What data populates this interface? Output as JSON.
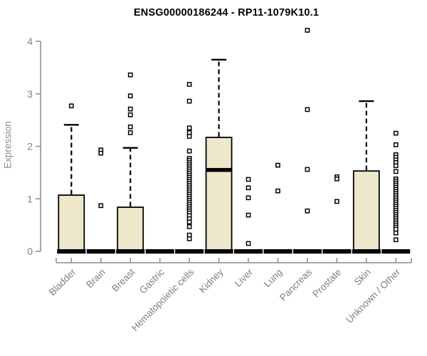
{
  "title": "ENSG00000186244 - RP11-1079K10.1",
  "chart_data": {
    "type": "boxplot",
    "title": "ENSG00000186244 - RP11-1079K10.1",
    "xlabel": "",
    "ylabel": "Expression",
    "ylim": [
      0,
      4.35
    ],
    "yticks": [
      0,
      1,
      2,
      3,
      4
    ],
    "grid": false,
    "legend": "none",
    "colors": {
      "box_fill": "#ede7cb",
      "box_stroke": "#000000",
      "median": "#000000",
      "axis": "#8a8a8a",
      "tick_label": "#7f7f7f",
      "title": "#000000",
      "background": "#ffffff"
    },
    "categories": [
      "Bladder",
      "Brain",
      "Breast",
      "Gastric",
      "Hematopoietic cells",
      "Kidney",
      "Liver",
      "Lung",
      "Pancreas",
      "Prostate",
      "Skin",
      "Unknown / Other"
    ],
    "boxes": [
      {
        "label": "Bladder",
        "q1": 0,
        "median": 0,
        "q3": 1.07,
        "whisker_low": 0,
        "whisker_high": 2.41,
        "outliers": [
          2.77
        ]
      },
      {
        "label": "Brain",
        "q1": 0,
        "median": 0,
        "q3": 0,
        "whisker_low": 0,
        "whisker_high": 0,
        "outliers": [
          1.93,
          1.87,
          0.87
        ]
      },
      {
        "label": "Breast",
        "q1": 0,
        "median": 0,
        "q3": 0.84,
        "whisker_low": 0,
        "whisker_high": 1.97,
        "outliers": [
          3.36,
          2.96,
          2.71,
          2.6,
          2.37,
          2.26
        ]
      },
      {
        "label": "Gastric",
        "q1": 0,
        "median": 0,
        "q3": 0,
        "whisker_low": 0,
        "whisker_high": 0,
        "outliers": []
      },
      {
        "label": "Hematopoietic cells",
        "q1": 0,
        "median": 0,
        "q3": 0,
        "whisker_low": 0,
        "whisker_high": 0,
        "outliers": [
          3.18,
          2.86,
          2.35,
          2.26,
          2.19,
          1.91,
          1.77,
          1.73,
          1.69,
          1.65,
          1.61,
          1.57,
          1.53,
          1.49,
          1.45,
          1.41,
          1.37,
          1.33,
          1.29,
          1.25,
          1.21,
          1.17,
          1.13,
          1.09,
          1.05,
          1.01,
          0.97,
          0.93,
          0.89,
          0.85,
          0.81,
          0.77,
          0.73,
          0.68,
          0.62,
          0.56,
          0.47,
          0.31,
          0.24
        ]
      },
      {
        "label": "Kidney",
        "q1": 0,
        "median": 1.55,
        "q3": 2.17,
        "whisker_low": 0,
        "whisker_high": 3.65,
        "outliers": []
      },
      {
        "label": "Liver",
        "q1": 0,
        "median": 0,
        "q3": 0,
        "whisker_low": 0,
        "whisker_high": 0,
        "outliers": [
          1.37,
          1.21,
          1.02,
          0.69,
          0.15
        ]
      },
      {
        "label": "Lung",
        "q1": 0,
        "median": 0,
        "q3": 0,
        "whisker_low": 0,
        "whisker_high": 0,
        "outliers": [
          1.64,
          1.15
        ]
      },
      {
        "label": "Pancreas",
        "q1": 0,
        "median": 0,
        "q3": 0,
        "whisker_low": 0,
        "whisker_high": 0,
        "outliers": [
          4.21,
          2.7,
          1.56,
          0.77
        ]
      },
      {
        "label": "Prostate",
        "q1": 0,
        "median": 0,
        "q3": 0,
        "whisker_low": 0,
        "whisker_high": 0,
        "outliers": [
          1.42,
          1.38,
          0.95
        ]
      },
      {
        "label": "Skin",
        "q1": 0,
        "median": 0,
        "q3": 1.53,
        "whisker_low": 0,
        "whisker_high": 2.86,
        "outliers": []
      },
      {
        "label": "Unknown / Other",
        "q1": 0,
        "median": 0,
        "q3": 0,
        "whisker_low": 0,
        "whisker_high": 0,
        "outliers": [
          2.25,
          2.03,
          1.84,
          1.79,
          1.74,
          1.69,
          1.63,
          1.52,
          1.38,
          1.34,
          1.3,
          1.26,
          1.22,
          1.18,
          1.14,
          1.1,
          1.06,
          1.02,
          0.98,
          0.94,
          0.9,
          0.86,
          0.82,
          0.78,
          0.74,
          0.7,
          0.66,
          0.62,
          0.58,
          0.54,
          0.5,
          0.46,
          0.42,
          0.35,
          0.22
        ]
      }
    ]
  }
}
